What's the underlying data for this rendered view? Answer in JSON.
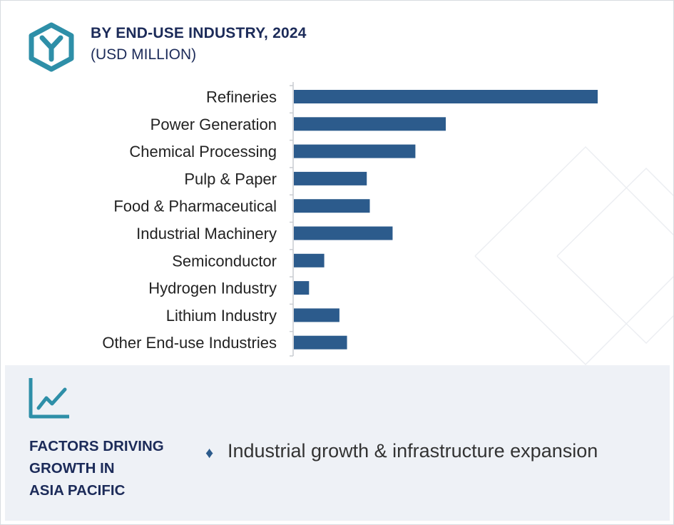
{
  "header": {
    "title": "BY END-USE INDUSTRY, 2024",
    "subtitle": "(USD MILLION)",
    "logo_icon": "hexagon-y-logo-icon"
  },
  "chart_data": {
    "type": "bar",
    "orientation": "horizontal",
    "categories": [
      "Refineries",
      "Power Generation",
      "Chemical Processing",
      "Pulp & Paper",
      "Food & Pharmaceutical",
      "Industrial Machinery",
      "Semiconductor",
      "Hydrogen Industry",
      "Lithium Industry",
      "Other End-use Industries"
    ],
    "values": [
      100,
      50,
      40,
      24,
      25,
      32.5,
      10,
      5,
      15,
      17.5
    ],
    "xlim": [
      0,
      100
    ],
    "color": "#2c5b8c",
    "grid": false,
    "value_axis_labels": false
  },
  "factors": {
    "icon": "trend-chart-icon",
    "title_lines": [
      "FACTORS DRIVING",
      "GROWTH IN",
      "ASIA PACIFIC"
    ],
    "bullet_icon": "diamond-bullet-icon",
    "items": [
      "Industrial growth & infrastructure expansion"
    ]
  },
  "colors": {
    "accent_teal": "#2e8fa8",
    "navy": "#1c2b59",
    "bar_blue": "#2c5b8c",
    "panel_bg": "#eef1f6"
  }
}
